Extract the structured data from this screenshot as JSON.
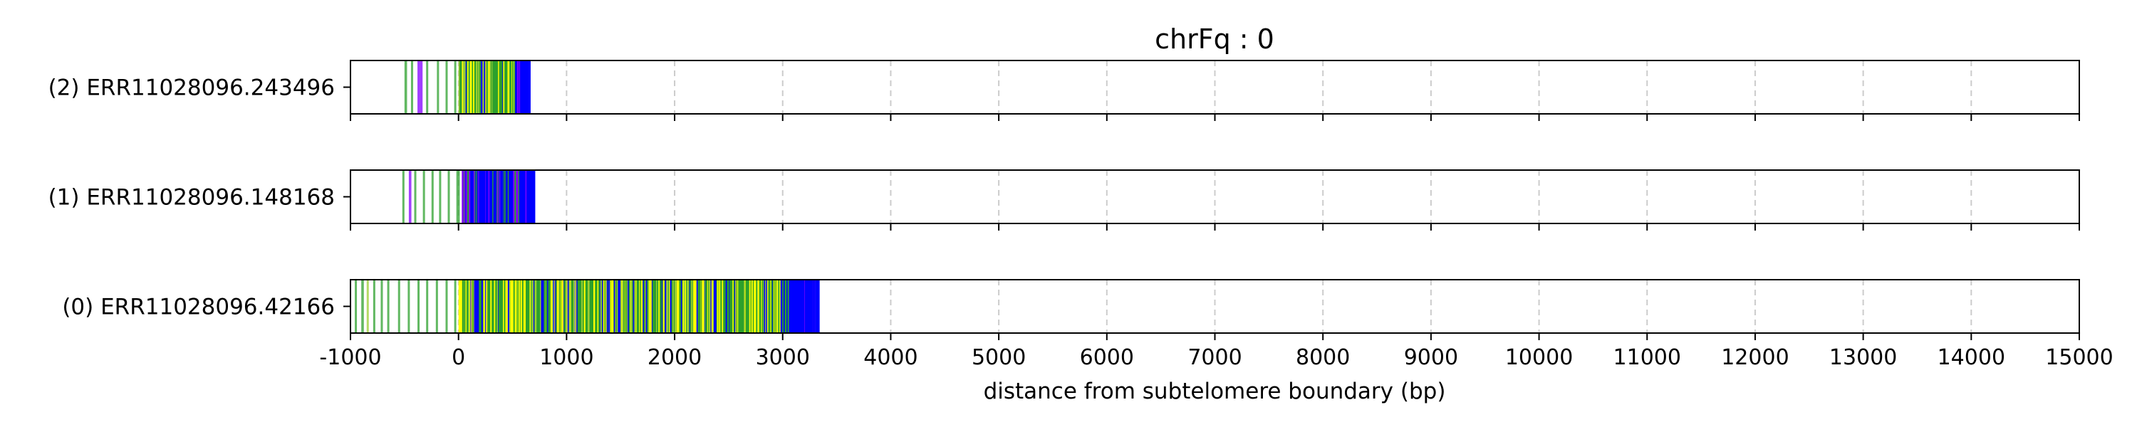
{
  "chart_data": {
    "type": "bar",
    "title": "chrFq : 0",
    "xlabel": "distance from subtelomere boundary (bp)",
    "xlim": [
      -1000,
      15000
    ],
    "xticks": [
      "-1000",
      "0",
      "1000",
      "2000",
      "3000",
      "4000",
      "5000",
      "6000",
      "7000",
      "8000",
      "9000",
      "10000",
      "11000",
      "12000",
      "13000",
      "14000",
      "15000"
    ],
    "grid": "vertical dashed",
    "colors": {
      "green": "#2ca02c",
      "yellow": "#ffff00",
      "blue": "#0000ff",
      "purple": "#8000ff",
      "olive": "#9acd32",
      "frame": "#000000",
      "grid": "#cccccc"
    },
    "rows": [
      {
        "label": "(2) ERR11028096.243496",
        "read_start": -1000,
        "read_end": 650,
        "sparse_range": [
          -520,
          0
        ],
        "sparse_marks": [
          {
            "x": -500,
            "color": "#2ca02c",
            "w": 6
          },
          {
            "x": -440,
            "color": "#2ca02c",
            "w": 5
          },
          {
            "x": -380,
            "color": "#8000ff",
            "w": 12
          },
          {
            "x": -300,
            "color": "#2ca02c",
            "w": 5
          },
          {
            "x": -200,
            "color": "#2ca02c",
            "w": 5
          },
          {
            "x": -120,
            "color": "#2ca02c",
            "w": 5
          },
          {
            "x": -40,
            "color": "#2ca02c",
            "w": 5
          }
        ],
        "dense_range": [
          0,
          650
        ],
        "dense_palette": [
          "#2ca02c",
          "#2ca02c",
          "#ffff00",
          "#9acd32",
          "#2ca02c",
          "#0000ff"
        ],
        "tail_blue_from": 520
      },
      {
        "label": "(1) ERR11028096.148168",
        "read_start": -1000,
        "read_end": 690,
        "sparse_range": [
          -540,
          0
        ],
        "sparse_marks": [
          {
            "x": -520,
            "color": "#2ca02c",
            "w": 5
          },
          {
            "x": -460,
            "color": "#8000ff",
            "w": 6
          },
          {
            "x": -410,
            "color": "#2ca02c",
            "w": 5
          },
          {
            "x": -330,
            "color": "#2ca02c",
            "w": 5
          },
          {
            "x": -250,
            "color": "#2ca02c",
            "w": 5
          },
          {
            "x": -180,
            "color": "#2ca02c",
            "w": 5
          },
          {
            "x": -100,
            "color": "#2ca02c",
            "w": 5
          },
          {
            "x": -20,
            "color": "#2ca02c",
            "w": 8
          }
        ],
        "dense_range": [
          30,
          690
        ],
        "dense_palette": [
          "#0000ff",
          "#0000ff",
          "#0000ff",
          "#2ca02c",
          "#0000ff",
          "#8000ff"
        ],
        "tail_blue_from": 560
      },
      {
        "label": "(0) ERR11028096.42166",
        "read_start": -1000,
        "read_end": 3330,
        "sparse_range": [
          -1000,
          0
        ],
        "sparse_marks": [
          {
            "x": -960,
            "color": "#2ca02c",
            "w": 5
          },
          {
            "x": -900,
            "color": "#2ca02c",
            "w": 6
          },
          {
            "x": -850,
            "color": "#9acd32",
            "w": 5
          },
          {
            "x": -790,
            "color": "#2ca02c",
            "w": 5
          },
          {
            "x": -720,
            "color": "#2ca02c",
            "w": 5
          },
          {
            "x": -660,
            "color": "#2ca02c",
            "w": 5
          },
          {
            "x": -560,
            "color": "#2ca02c",
            "w": 5
          },
          {
            "x": -470,
            "color": "#2ca02c",
            "w": 5
          },
          {
            "x": -380,
            "color": "#2ca02c",
            "w": 5
          },
          {
            "x": -300,
            "color": "#2ca02c",
            "w": 5
          },
          {
            "x": -210,
            "color": "#2ca02c",
            "w": 5
          },
          {
            "x": -120,
            "color": "#2ca02c",
            "w": 5
          },
          {
            "x": -40,
            "color": "#2ca02c",
            "w": 5
          }
        ],
        "dense_range": [
          0,
          3330
        ],
        "dense_palette": [
          "#2ca02c",
          "#2ca02c",
          "#ffff00",
          "#9acd32",
          "#2ca02c",
          "#0000ff",
          "#ffff00"
        ],
        "tail_blue_from": 3050
      }
    ]
  }
}
